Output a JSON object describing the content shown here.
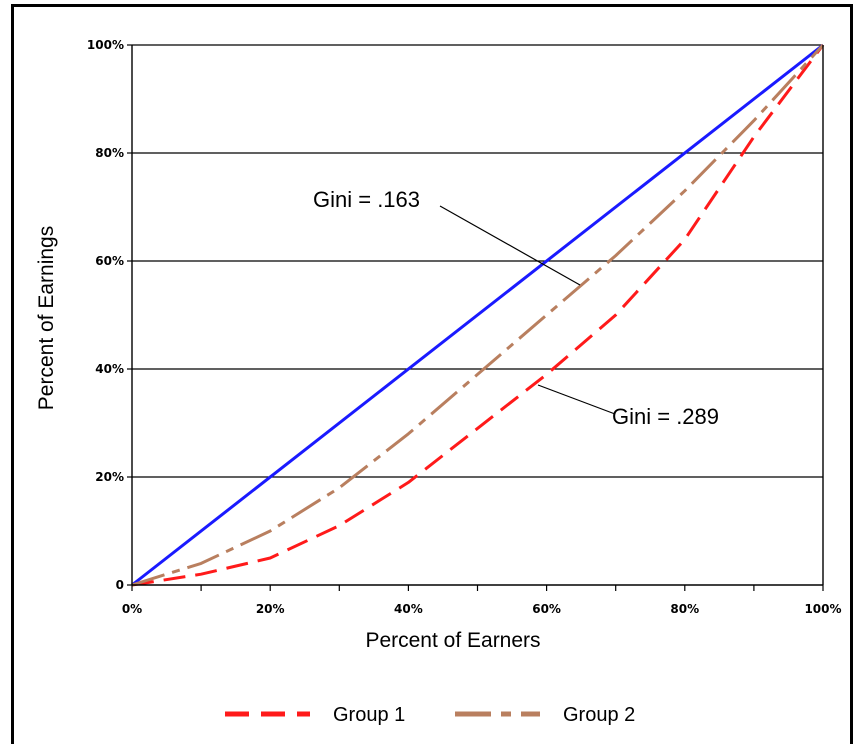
{
  "chart_data": {
    "type": "line",
    "title": "",
    "xlabel": "Percent of Earners",
    "ylabel": "Percent of Earnings",
    "xlim": [
      0,
      100
    ],
    "ylim": [
      0,
      100
    ],
    "x_ticks": [
      "0%",
      "20%",
      "40%",
      "60%",
      "80%",
      "100%"
    ],
    "y_ticks": [
      "0",
      "20%",
      "40%",
      "60%",
      "80%",
      "100%"
    ],
    "grid": "horizontal",
    "legend_position": "bottom",
    "series": [
      {
        "key": "equality",
        "name": "",
        "color": "#1a1aff",
        "style": "solid",
        "x": [
          0,
          100
        ],
        "y": [
          0,
          100
        ]
      },
      {
        "key": "group1",
        "name": "Group 1",
        "color": "#ff1a1a",
        "style": "dashed",
        "x": [
          0,
          10,
          20,
          30,
          40,
          50,
          60,
          70,
          80,
          90,
          100
        ],
        "y": [
          0,
          2,
          5,
          11,
          19,
          29,
          39,
          50,
          64,
          83,
          100
        ]
      },
      {
        "key": "group2",
        "name": "Group 2",
        "color": "#b97f5f",
        "style": "dash-dot",
        "x": [
          0,
          10,
          20,
          30,
          40,
          50,
          60,
          70,
          80,
          90,
          100
        ],
        "y": [
          0,
          4,
          10,
          18,
          28,
          39,
          50,
          61,
          73,
          86,
          100
        ]
      }
    ],
    "annotations": [
      {
        "text": "Gini = .163",
        "point_x": 65,
        "point_y": 55
      },
      {
        "text": "Gini = .289",
        "point_x": 58,
        "point_y": 37
      }
    ]
  }
}
